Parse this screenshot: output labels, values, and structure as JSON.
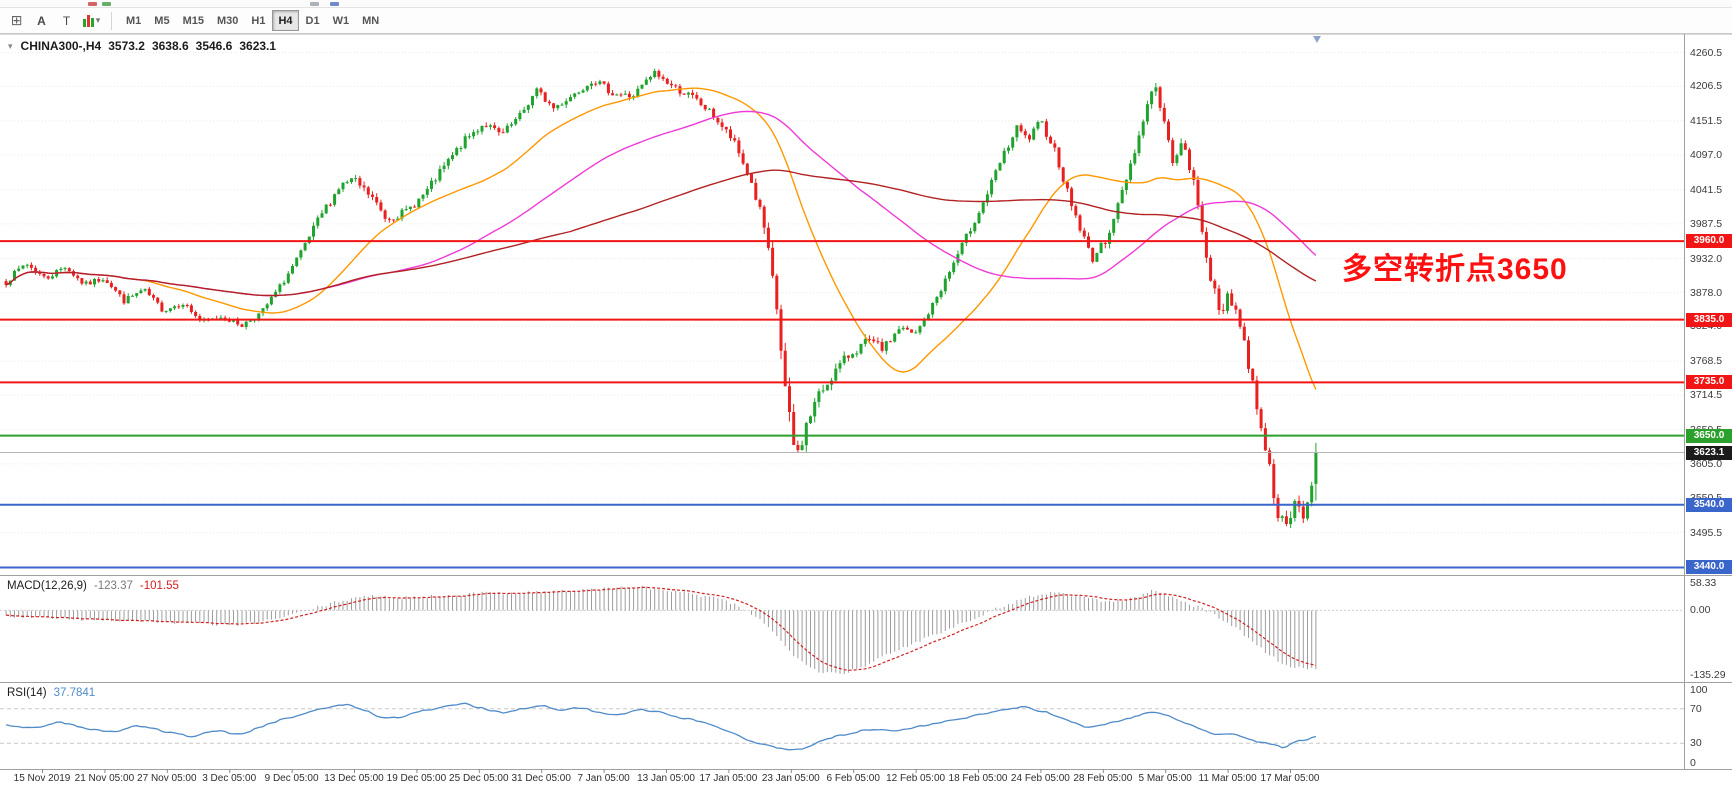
{
  "window": {
    "background": "#ffffff"
  },
  "toolbar": {
    "grid_button": "⊞",
    "text_button": "A",
    "type_button": "T",
    "indicator_caret": "▾",
    "timeframes": [
      "M1",
      "M5",
      "M15",
      "M30",
      "H1",
      "H4",
      "D1",
      "W1",
      "MN"
    ],
    "active_timeframe": "H4"
  },
  "price_panel": {
    "collapse_icon": "▾",
    "symbol": "CHINA300-,H4",
    "open": "3573.2",
    "high": "3638.6",
    "low": "3546.6",
    "close": "3623.1",
    "annotation": {
      "text": "多空转折点3650",
      "color": "#ff1010"
    },
    "axis_labels": [
      "4260.5",
      "4206.5",
      "4151.5",
      "4097.0",
      "4041.5",
      "3987.5",
      "3932.0",
      "3878.0",
      "3824.0",
      "3768.5",
      "3714.5",
      "3659.5",
      "3605.0",
      "3550.5",
      "3495.5",
      "3440.0"
    ],
    "levels": [
      {
        "price": 3960.0,
        "label": "3960.0",
        "color": "#f21515"
      },
      {
        "price": 3835.0,
        "label": "3835.0",
        "color": "#f21515"
      },
      {
        "price": 3735.0,
        "label": "3735.0",
        "color": "#f21515"
      },
      {
        "price": 3650.0,
        "label": "3650.0",
        "color": "#2ca02c"
      },
      {
        "price": 3540.0,
        "label": "3540.0",
        "color": "#3a66cc"
      },
      {
        "price": 3440.0,
        "label": "3440.0",
        "color": "#3a66cc"
      }
    ],
    "current_price": {
      "price": 3623.1,
      "label": "3623.1",
      "background": "#1b1b1b"
    }
  },
  "macd_panel": {
    "label": "MACD(12,26,9)",
    "main_value": "-123.37",
    "signal_value": "-101.55",
    "main_color": "#7a7a7a",
    "signal_color": "#d22020",
    "scale": [
      {
        "label": "58.33",
        "value": 58.33
      },
      {
        "label": "0.00",
        "value": 0
      },
      {
        "label": "-135.29",
        "value": -135.29
      }
    ]
  },
  "rsi_panel": {
    "label": "RSI(14)",
    "value": "37.7841",
    "color": "#4f8bc9",
    "scale": [
      {
        "label": "100",
        "value": 100
      },
      {
        "label": "70",
        "value": 70
      },
      {
        "label": "30",
        "value": 30
      },
      {
        "label": "0",
        "value": 0
      }
    ]
  },
  "x_axis": {
    "labels": [
      "15 Nov 2019",
      "21 Nov 05:00",
      "27 Nov 05:00",
      "3 Dec 05:00",
      "9 Dec 05:00",
      "13 Dec 05:00",
      "19 Dec 05:00",
      "25 Dec 05:00",
      "31 Dec 05:00",
      "7 Jan 05:00",
      "13 Jan 05:00",
      "17 Jan 05:00",
      "23 Jan 05:00",
      "6 Feb 05:00",
      "12 Feb 05:00",
      "18 Feb 05:00",
      "24 Feb 05:00",
      "28 Feb 05:00",
      "5 Mar 05:00",
      "11 Mar 05:00",
      "17 Mar 05:00"
    ]
  },
  "chart_data": {
    "type": "candlestick",
    "symbol": "CHINA300-",
    "timeframe": "H4",
    "bars": 312,
    "ohlc_current": {
      "open": 3573.2,
      "high": 3638.6,
      "low": 3546.6,
      "close": 3623.1
    },
    "price_range": [
      3428,
      4290
    ],
    "close_waypoints": [
      [
        0,
        3895
      ],
      [
        0.015,
        3925
      ],
      [
        0.03,
        3900
      ],
      [
        0.045,
        3920
      ],
      [
        0.06,
        3890
      ],
      [
        0.075,
        3902
      ],
      [
        0.09,
        3865
      ],
      [
        0.105,
        3882
      ],
      [
        0.12,
        3850
      ],
      [
        0.135,
        3862
      ],
      [
        0.15,
        3830
      ],
      [
        0.165,
        3840
      ],
      [
        0.18,
        3826
      ],
      [
        0.195,
        3846
      ],
      [
        0.21,
        3890
      ],
      [
        0.225,
        3940
      ],
      [
        0.24,
        4000
      ],
      [
        0.255,
        4048
      ],
      [
        0.265,
        4058
      ],
      [
        0.28,
        4028
      ],
      [
        0.29,
        3996
      ],
      [
        0.305,
        4006
      ],
      [
        0.32,
        4036
      ],
      [
        0.335,
        4080
      ],
      [
        0.35,
        4120
      ],
      [
        0.365,
        4148
      ],
      [
        0.378,
        4128
      ],
      [
        0.392,
        4158
      ],
      [
        0.405,
        4200
      ],
      [
        0.418,
        4172
      ],
      [
        0.432,
        4192
      ],
      [
        0.448,
        4218
      ],
      [
        0.463,
        4196
      ],
      [
        0.478,
        4190
      ],
      [
        0.495,
        4228
      ],
      [
        0.51,
        4205
      ],
      [
        0.525,
        4188
      ],
      [
        0.54,
        4160
      ],
      [
        0.555,
        4120
      ],
      [
        0.568,
        4060
      ],
      [
        0.578,
        3990
      ],
      [
        0.588,
        3860
      ],
      [
        0.596,
        3700
      ],
      [
        0.603,
        3612
      ],
      [
        0.61,
        3660
      ],
      [
        0.618,
        3705
      ],
      [
        0.63,
        3745
      ],
      [
        0.645,
        3782
      ],
      [
        0.658,
        3800
      ],
      [
        0.67,
        3788
      ],
      [
        0.682,
        3822
      ],
      [
        0.694,
        3810
      ],
      [
        0.706,
        3852
      ],
      [
        0.72,
        3910
      ],
      [
        0.734,
        3970
      ],
      [
        0.748,
        4030
      ],
      [
        0.76,
        4090
      ],
      [
        0.772,
        4140
      ],
      [
        0.78,
        4120
      ],
      [
        0.79,
        4150
      ],
      [
        0.8,
        4110
      ],
      [
        0.81,
        4040
      ],
      [
        0.82,
        3980
      ],
      [
        0.829,
        3932
      ],
      [
        0.838,
        3955
      ],
      [
        0.848,
        4010
      ],
      [
        0.858,
        4080
      ],
      [
        0.868,
        4150
      ],
      [
        0.876,
        4215
      ],
      [
        0.883,
        4160
      ],
      [
        0.89,
        4090
      ],
      [
        0.898,
        4115
      ],
      [
        0.906,
        4060
      ],
      [
        0.913,
        3980
      ],
      [
        0.92,
        3900
      ],
      [
        0.927,
        3838
      ],
      [
        0.933,
        3880
      ],
      [
        0.94,
        3845
      ],
      [
        0.947,
        3780
      ],
      [
        0.953,
        3720
      ],
      [
        0.96,
        3650
      ],
      [
        0.966,
        3580
      ],
      [
        0.972,
        3520
      ],
      [
        0.978,
        3498
      ],
      [
        0.984,
        3545
      ],
      [
        0.99,
        3522
      ],
      [
        0.995,
        3552
      ],
      [
        1,
        3623
      ]
    ],
    "volatility_waypoints": [
      [
        0,
        9
      ],
      [
        0.2,
        8
      ],
      [
        0.25,
        12
      ],
      [
        0.5,
        10
      ],
      [
        0.56,
        12
      ],
      [
        0.58,
        20
      ],
      [
        0.6,
        30
      ],
      [
        0.62,
        18
      ],
      [
        0.7,
        10
      ],
      [
        0.76,
        12
      ],
      [
        0.87,
        14
      ],
      [
        0.91,
        16
      ],
      [
        0.95,
        22
      ],
      [
        0.98,
        20
      ],
      [
        1,
        14
      ]
    ],
    "colors": {
      "up": "#1fa32e",
      "down": "#e82020",
      "ma_fast": "#ff9800",
      "ma_mid": "#f03ad7",
      "ma_slow": "#b22222",
      "grid": "#ebebeb",
      "separator": "#a0a0a0",
      "current_price_line": "#b4b4b4"
    },
    "moving_averages": [
      {
        "name": "MA-fast",
        "window": 30,
        "color_key": "ma_fast"
      },
      {
        "name": "MA-mid",
        "window": 75,
        "color_key": "ma_mid"
      },
      {
        "name": "MA-slow",
        "window": 135,
        "color_key": "ma_slow"
      }
    ],
    "indicators": {
      "macd": {
        "histogram_color": "#9c9c9c",
        "signal_color": "#d22020",
        "value_range": [
          -150,
          72
        ],
        "current_main": -123.37,
        "current_signal": -101.55,
        "waypoints": [
          [
            0,
            -12
          ],
          [
            0.05,
            -18
          ],
          [
            0.1,
            -22
          ],
          [
            0.15,
            -28
          ],
          [
            0.18,
            -30
          ],
          [
            0.21,
            -16
          ],
          [
            0.24,
            8
          ],
          [
            0.27,
            30
          ],
          [
            0.3,
            26
          ],
          [
            0.33,
            30
          ],
          [
            0.36,
            36
          ],
          [
            0.4,
            38
          ],
          [
            0.44,
            42
          ],
          [
            0.48,
            50
          ],
          [
            0.52,
            36
          ],
          [
            0.55,
            20
          ],
          [
            0.575,
            -15
          ],
          [
            0.6,
            -90
          ],
          [
            0.62,
            -128
          ],
          [
            0.64,
            -132
          ],
          [
            0.66,
            -110
          ],
          [
            0.68,
            -85
          ],
          [
            0.7,
            -60
          ],
          [
            0.72,
            -38
          ],
          [
            0.74,
            -15
          ],
          [
            0.76,
            8
          ],
          [
            0.78,
            28
          ],
          [
            0.8,
            38
          ],
          [
            0.82,
            30
          ],
          [
            0.84,
            18
          ],
          [
            0.86,
            24
          ],
          [
            0.875,
            42
          ],
          [
            0.89,
            30
          ],
          [
            0.9,
            18
          ],
          [
            0.92,
            -5
          ],
          [
            0.935,
            -30
          ],
          [
            0.95,
            -60
          ],
          [
            0.965,
            -95
          ],
          [
            0.98,
            -118
          ],
          [
            1,
            -123.37
          ]
        ]
      },
      "rsi": {
        "line_color": "#4f8bc9",
        "levels": [
          70,
          30
        ],
        "current": 37.7841,
        "waypoints": [
          [
            0,
            52
          ],
          [
            0.02,
            46
          ],
          [
            0.04,
            55
          ],
          [
            0.06,
            48
          ],
          [
            0.08,
            42
          ],
          [
            0.1,
            50
          ],
          [
            0.12,
            44
          ],
          [
            0.14,
            38
          ],
          [
            0.16,
            45
          ],
          [
            0.18,
            40
          ],
          [
            0.2,
            52
          ],
          [
            0.22,
            62
          ],
          [
            0.24,
            70
          ],
          [
            0.26,
            75
          ],
          [
            0.275,
            68
          ],
          [
            0.29,
            58
          ],
          [
            0.305,
            62
          ],
          [
            0.32,
            68
          ],
          [
            0.335,
            73
          ],
          [
            0.35,
            76
          ],
          [
            0.365,
            70
          ],
          [
            0.38,
            65
          ],
          [
            0.395,
            71
          ],
          [
            0.41,
            75
          ],
          [
            0.425,
            68
          ],
          [
            0.44,
            72
          ],
          [
            0.455,
            65
          ],
          [
            0.47,
            62
          ],
          [
            0.485,
            70
          ],
          [
            0.5,
            66
          ],
          [
            0.515,
            60
          ],
          [
            0.53,
            55
          ],
          [
            0.55,
            45
          ],
          [
            0.57,
            32
          ],
          [
            0.59,
            24
          ],
          [
            0.605,
            22
          ],
          [
            0.62,
            32
          ],
          [
            0.64,
            40
          ],
          [
            0.66,
            46
          ],
          [
            0.68,
            44
          ],
          [
            0.7,
            50
          ],
          [
            0.72,
            56
          ],
          [
            0.74,
            62
          ],
          [
            0.76,
            68
          ],
          [
            0.775,
            72
          ],
          [
            0.79,
            68
          ],
          [
            0.81,
            58
          ],
          [
            0.825,
            48
          ],
          [
            0.84,
            52
          ],
          [
            0.86,
            60
          ],
          [
            0.875,
            68
          ],
          [
            0.89,
            60
          ],
          [
            0.905,
            50
          ],
          [
            0.92,
            40
          ],
          [
            0.935,
            42
          ],
          [
            0.95,
            34
          ],
          [
            0.965,
            28
          ],
          [
            0.978,
            25
          ],
          [
            0.985,
            32
          ],
          [
            0.993,
            35
          ],
          [
            1,
            37.78
          ]
        ]
      }
    }
  }
}
